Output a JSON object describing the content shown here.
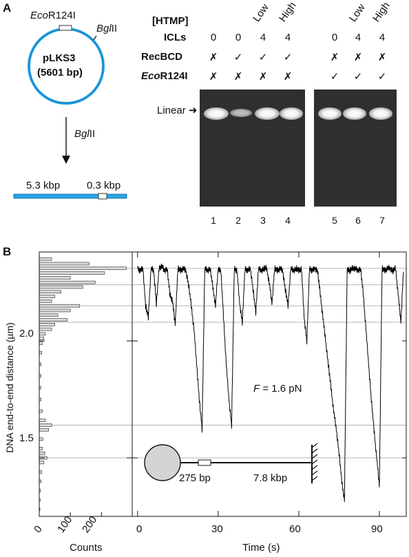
{
  "panel_a": {
    "letter": "A",
    "plasmid": {
      "name": "pLKS3",
      "size": "(5601 bp)",
      "site1_prefix": "Eco",
      "site1_suffix": "R124I",
      "site2": "BglII",
      "site2_prefix": "Bgl",
      "site2_suffix": "II"
    },
    "arrow_enzyme_prefix": "Bgl",
    "arrow_enzyme_suffix": "II",
    "linear_left": "5.3 kbp",
    "linear_right": "0.3 kbp",
    "row_labels": {
      "htmp": "[HTMP]",
      "icls": "ICLs",
      "recbcd": "RecBCD",
      "eco_prefix": "Eco",
      "eco_suffix": "R124I"
    },
    "gel_marker": "Linear",
    "lanes": [
      {
        "num": "1",
        "htmp": "",
        "icls": "0",
        "recbcd": "✗",
        "eco": "✗"
      },
      {
        "num": "2",
        "htmp": "",
        "icls": "0",
        "recbcd": "✓",
        "eco": "✗"
      },
      {
        "num": "3",
        "htmp": "Low",
        "icls": "4",
        "recbcd": "✓",
        "eco": "✗"
      },
      {
        "num": "4",
        "htmp": "High",
        "icls": "4",
        "recbcd": "✓",
        "eco": "✗"
      },
      {
        "num": "5",
        "htmp": "",
        "icls": "0",
        "recbcd": "✗",
        "eco": "✓"
      },
      {
        "num": "6",
        "htmp": "Low",
        "icls": "4",
        "recbcd": "✗",
        "eco": "✓"
      },
      {
        "num": "7",
        "htmp": "High",
        "icls": "4",
        "recbcd": "✗",
        "eco": "✓"
      }
    ]
  },
  "panel_b": {
    "letter": "B",
    "ylabel": "DNA end-to-end distance (µm)",
    "yticks": [
      "2.0",
      "1.5"
    ],
    "hist_xticks": [
      "0",
      "100",
      "200"
    ],
    "hist_xlabel": "Counts",
    "time_xticks": [
      "0",
      "30",
      "60",
      "90"
    ],
    "time_xlabel": "Time (s)",
    "force_label": "F",
    "force_value": " = 1.6 pN",
    "diagram_left": "275 bp",
    "diagram_right": "7.8 kbp"
  },
  "chart_data": {
    "type": "line",
    "xlabel": "Time (s)",
    "ylabel": "DNA end-to-end distance (µm)",
    "xlim": [
      -2,
      100
    ],
    "ylim": [
      1.25,
      2.38
    ],
    "reference_levels": [
      2.31,
      2.24,
      2.15,
      2.08,
      1.64,
      1.5
    ],
    "series": [
      {
        "x": [
          0,
          1,
          2,
          3,
          4,
          5,
          6,
          7,
          8,
          9,
          10,
          11,
          12,
          13,
          14,
          15,
          16,
          17,
          18,
          19,
          20,
          21,
          22,
          23,
          24,
          25,
          26,
          27,
          28,
          29,
          30,
          31,
          32,
          33,
          34,
          35,
          36,
          37,
          38,
          39,
          40,
          41,
          42,
          43,
          44,
          45,
          46,
          47,
          48,
          49,
          50,
          51,
          52,
          53,
          54,
          55,
          56,
          57,
          58,
          59,
          60,
          61,
          62,
          63,
          64,
          65,
          66,
          67,
          68,
          69,
          70,
          71,
          72,
          73,
          74,
          75,
          76,
          77,
          78,
          79,
          80,
          81,
          82,
          83,
          84,
          85,
          86,
          87,
          88,
          89,
          90,
          91,
          92,
          93,
          94,
          95,
          96,
          97,
          98,
          99
        ],
        "y": [
          2.31,
          2.3,
          2.31,
          2.15,
          2.1,
          2.31,
          2.3,
          2.16,
          2.31,
          2.32,
          2.3,
          2.31,
          2.2,
          2.17,
          2.07,
          2.31,
          2.3,
          2.31,
          2.3,
          2.24,
          2.15,
          2.05,
          1.9,
          1.75,
          1.62,
          2.31,
          2.3,
          2.31,
          2.23,
          2.15,
          2.31,
          2.3,
          2.1,
          1.9,
          1.75,
          1.64,
          2.31,
          2.3,
          2.16,
          2.08,
          2.31,
          2.3,
          2.31,
          2.22,
          2.12,
          2.31,
          2.3,
          2.31,
          2.31,
          2.25,
          2.16,
          2.31,
          2.3,
          2.31,
          2.3,
          2.22,
          2.15,
          2.31,
          2.3,
          2.31,
          2.3,
          2.31,
          2.1,
          2.0,
          2.31,
          2.3,
          2.31,
          2.3,
          2.2,
          2.1,
          2.0,
          1.9,
          1.8,
          1.7,
          1.62,
          1.52,
          1.4,
          1.32,
          2.31,
          2.3,
          2.31,
          2.31,
          2.3,
          2.31,
          2.2,
          2.05,
          1.9,
          1.75,
          1.62,
          1.5,
          1.38,
          2.31,
          2.3,
          2.31,
          2.31,
          2.3,
          2.31,
          2.2,
          2.08,
          2.31
        ]
      }
    ],
    "histogram": {
      "xlabel": "Counts",
      "bins_y": [
        2.35,
        2.33,
        2.31,
        2.29,
        2.27,
        2.25,
        2.23,
        2.21,
        2.19,
        2.17,
        2.15,
        2.13,
        2.11,
        2.09,
        2.07,
        2.05,
        2.03,
        2.01,
        1.99,
        1.95,
        1.9,
        1.85,
        1.8,
        1.75,
        1.7,
        1.66,
        1.64,
        1.62,
        1.58,
        1.54,
        1.52,
        1.5,
        1.48,
        1.44,
        1.4,
        1.36,
        1.32,
        1.28
      ],
      "counts": [
        40,
        160,
        280,
        210,
        100,
        180,
        140,
        70,
        50,
        40,
        130,
        100,
        60,
        90,
        50,
        40,
        20,
        15,
        10,
        8,
        6,
        6,
        5,
        6,
        10,
        20,
        40,
        30,
        12,
        10,
        18,
        25,
        15,
        8,
        6,
        4,
        3,
        2
      ]
    }
  }
}
